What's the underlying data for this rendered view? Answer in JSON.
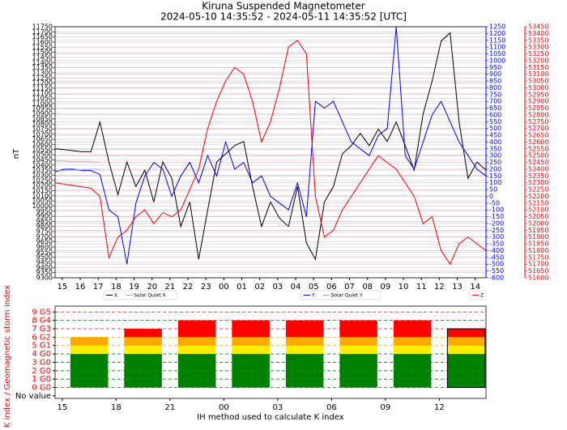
{
  "chart_data": [
    {
      "type": "line",
      "title": "Kiruna Suspended Magnetometer",
      "subtitle": "2024-05-10 14:35:52 - 2024-05-11 14:35:52 [UTC]",
      "ylabel": "nT",
      "xlim": [
        0,
        24
      ],
      "xticks": [
        {
          "value": 0.4,
          "label": "15"
        },
        {
          "value": 1.4,
          "label": "16"
        },
        {
          "value": 2.4,
          "label": "17"
        },
        {
          "value": 3.4,
          "label": "18"
        },
        {
          "value": 4.4,
          "label": "19"
        },
        {
          "value": 5.4,
          "label": "20"
        },
        {
          "value": 6.4,
          "label": "21"
        },
        {
          "value": 7.4,
          "label": "22"
        },
        {
          "value": 8.4,
          "label": "23"
        },
        {
          "value": 9.4,
          "label": "00"
        },
        {
          "value": 10.4,
          "label": "01"
        },
        {
          "value": 11.4,
          "label": "02"
        },
        {
          "value": 12.4,
          "label": "03"
        },
        {
          "value": 13.4,
          "label": "04"
        },
        {
          "value": 14.4,
          "label": "05"
        },
        {
          "value": 15.4,
          "label": "06"
        },
        {
          "value": 16.4,
          "label": "07"
        },
        {
          "value": 17.4,
          "label": "08"
        },
        {
          "value": 18.4,
          "label": "09"
        },
        {
          "value": 19.4,
          "label": "10"
        },
        {
          "value": 20.4,
          "label": "11"
        },
        {
          "value": 21.4,
          "label": "12"
        },
        {
          "value": 22.4,
          "label": "13"
        },
        {
          "value": 23.4,
          "label": "14"
        }
      ],
      "ylim": [
        9300,
        11750
      ],
      "yticks": [
        9300,
        9350,
        9400,
        9450,
        9500,
        9550,
        9600,
        9650,
        9700,
        9750,
        9800,
        9850,
        9900,
        9950,
        10000,
        10050,
        10100,
        10150,
        10200,
        10250,
        10300,
        10350,
        10400,
        10450,
        10500,
        10550,
        10600,
        10650,
        10700,
        10750,
        10800,
        10850,
        10900,
        10950,
        11000,
        11050,
        11100,
        11150,
        11200,
        11250,
        11300,
        11350,
        11400,
        11450,
        11500,
        11550,
        11600,
        11650,
        11700,
        11750
      ],
      "y2lim": [
        -600,
        1250
      ],
      "y2ticks": [
        -600,
        -550,
        -500,
        -450,
        -400,
        -350,
        -300,
        -250,
        -200,
        -150,
        -100,
        -50,
        0,
        50,
        100,
        150,
        200,
        250,
        300,
        350,
        400,
        450,
        500,
        550,
        600,
        650,
        700,
        750,
        800,
        850,
        900,
        950,
        1000,
        1050,
        1100,
        1150,
        1200,
        1250
      ],
      "y3lim": [
        51600,
        53450
      ],
      "y3ticks": [
        51600,
        51650,
        51700,
        51750,
        51800,
        51850,
        51900,
        51950,
        52000,
        52050,
        52100,
        52150,
        52200,
        52250,
        52300,
        52350,
        52400,
        52450,
        52500,
        52550,
        52600,
        52650,
        52700,
        52750,
        52800,
        52850,
        52900,
        52950,
        53000,
        53050,
        53100,
        53150,
        53200,
        53250,
        53300,
        53350,
        53400,
        53450
      ],
      "grid": true,
      "x": [
        0,
        0.5,
        1,
        1.5,
        2,
        2.5,
        3,
        3.5,
        4,
        4.5,
        5,
        5.5,
        6,
        6.5,
        7,
        7.5,
        8,
        8.5,
        9,
        9.5,
        10,
        10.5,
        11,
        11.5,
        12,
        12.5,
        13,
        13.5,
        14,
        14.5,
        15,
        15.5,
        16,
        16.5,
        17,
        17.5,
        18,
        18.5,
        19,
        19.5,
        20,
        20.5,
        21,
        21.5,
        22,
        22.5,
        23,
        23.5,
        24
      ],
      "series": [
        {
          "name": "X",
          "color": "#000000",
          "axis": "y",
          "values": [
            10560,
            10550,
            10540,
            10530,
            10530,
            10820,
            10430,
            10110,
            10430,
            10190,
            10350,
            10040,
            10430,
            10270,
            9800,
            10040,
            9480,
            9960,
            10430,
            10510,
            10590,
            10630,
            10190,
            9800,
            10040,
            9880,
            9800,
            10190,
            9640,
            9480,
            10040,
            10190,
            10510,
            10590,
            10710,
            10590,
            10750,
            10630,
            10820,
            10590,
            10350,
            10900,
            11220,
            11610,
            11690,
            10820,
            10270,
            10430,
            10350
          ]
        },
        {
          "name": "Solar Quiet X",
          "color": "#aaaaaa",
          "axis": "y",
          "values": [
            10440,
            10440,
            10435,
            10435,
            10430,
            10430,
            null,
            null,
            null,
            null,
            null,
            null,
            null,
            null,
            null,
            null,
            null,
            null,
            null,
            null,
            null,
            null,
            null,
            null,
            null,
            null,
            null,
            null,
            null,
            null,
            null,
            null,
            null,
            null,
            null,
            null,
            null,
            null,
            null,
            null,
            null,
            null,
            null,
            null,
            null,
            null,
            null,
            null,
            null
          ]
        },
        {
          "name": "Y",
          "color": "#0000ee",
          "axis": "y2",
          "values": [
            180,
            200,
            200,
            190,
            190,
            160,
            -100,
            -150,
            -500,
            -50,
            150,
            250,
            200,
            0,
            150,
            250,
            100,
            300,
            150,
            400,
            200,
            250,
            100,
            150,
            0,
            -50,
            -100,
            100,
            -150,
            700,
            650,
            700,
            550,
            400,
            350,
            300,
            450,
            500,
            1250,
            300,
            200,
            400,
            600,
            700,
            550,
            400,
            300,
            200,
            150
          ]
        },
        {
          "name": "Solar Quiet Y",
          "color": "#8899ff",
          "axis": "y2",
          "values": [
            190,
            190,
            195,
            195,
            200,
            200,
            null,
            null,
            null,
            null,
            null,
            null,
            null,
            null,
            null,
            null,
            null,
            null,
            null,
            null,
            null,
            null,
            null,
            null,
            null,
            null,
            null,
            null,
            null,
            null,
            null,
            null,
            null,
            null,
            null,
            null,
            null,
            null,
            null,
            null,
            null,
            null,
            null,
            null,
            null,
            null,
            null,
            null,
            null
          ]
        },
        {
          "name": "Z",
          "color": "#ee0000",
          "axis": "y3",
          "values": [
            52300,
            52290,
            52280,
            52270,
            52260,
            52200,
            51750,
            51900,
            51950,
            52050,
            52100,
            52000,
            52080,
            52050,
            52100,
            52250,
            52400,
            52700,
            52900,
            53050,
            53150,
            53100,
            52900,
            52600,
            52750,
            53000,
            53300,
            53350,
            53250,
            52200,
            51900,
            51950,
            52100,
            52200,
            52300,
            52400,
            52500,
            52450,
            52400,
            52300,
            52200,
            52000,
            52050,
            51800,
            51700,
            51850,
            51900,
            51850,
            51800
          ]
        }
      ]
    },
    {
      "type": "bar",
      "xlabel": "IH method used to calculate K index",
      "ylabel": "K index / Geomagnetic storm index",
      "xlim": [
        0,
        24
      ],
      "xticks": [
        {
          "value": 0.4,
          "label": "15"
        },
        {
          "value": 3.4,
          "label": "18"
        },
        {
          "value": 6.4,
          "label": "21"
        },
        {
          "value": 9.4,
          "label": "00"
        },
        {
          "value": 12.4,
          "label": "03"
        },
        {
          "value": 15.4,
          "label": "06"
        },
        {
          "value": 18.4,
          "label": "09"
        },
        {
          "value": 21.4,
          "label": "12"
        }
      ],
      "ylim": [
        -1.3,
        9.7
      ],
      "yticks": [
        {
          "value": -1,
          "label": "No value"
        },
        {
          "value": 0,
          "label": "0 G0"
        },
        {
          "value": 1,
          "label": "1 G0"
        },
        {
          "value": 2,
          "label": "2 G0"
        },
        {
          "value": 3,
          "label": "3 G0"
        },
        {
          "value": 4,
          "label": "4 G0"
        },
        {
          "value": 5,
          "label": "5 G1"
        },
        {
          "value": 6,
          "label": "6 G2"
        },
        {
          "value": 7,
          "label": "7 G3"
        },
        {
          "value": 8,
          "label": "8 G4"
        },
        {
          "value": 9,
          "label": "9 G5"
        }
      ],
      "x": [
        0.4,
        3.4,
        6.4,
        9.4,
        12.4,
        15.4,
        18.4,
        21.4
      ],
      "values": [
        6,
        7,
        8,
        8,
        8,
        8,
        8,
        7
      ],
      "level_colors": [
        "#008000",
        "#008000",
        "#008000",
        "#008000",
        "#ffee00",
        "#ffaa00",
        "#ff0000",
        "#ff0000",
        "#ff0000"
      ]
    }
  ]
}
